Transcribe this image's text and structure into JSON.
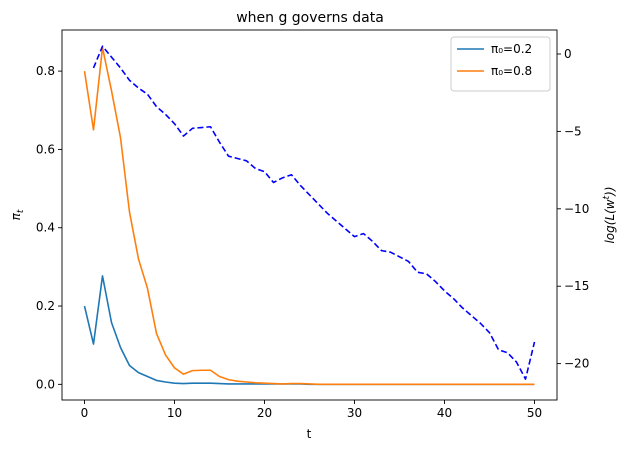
{
  "chart_data": {
    "type": "line",
    "title": "when g governs data",
    "xlabel": "t",
    "ylabel": "π_t",
    "y2label": "log(L(w^t))",
    "xlim": [
      -2.5,
      52.5
    ],
    "ylim": [
      -0.04,
      0.905
    ],
    "y2lim": [
      -22.35,
      1.55
    ],
    "xticks": [
      0,
      10,
      20,
      30,
      40,
      50
    ],
    "yticks": [
      0.0,
      0.2,
      0.4,
      0.6,
      0.8
    ],
    "y2ticks": [
      0,
      -5,
      -10,
      -15,
      -20
    ],
    "legend_position": "upper right",
    "series": [
      {
        "name": "π₀=0.2",
        "axis": "left",
        "color": "#1f77b4",
        "style": "solid",
        "x": [
          0,
          1,
          2,
          3,
          4,
          5,
          6,
          7,
          8,
          9,
          10,
          11,
          12,
          13,
          14,
          15,
          16,
          17,
          18,
          19,
          20,
          21,
          22,
          23,
          24,
          25,
          26,
          27,
          28,
          29,
          30,
          31,
          32,
          33,
          34,
          35,
          36,
          37,
          38,
          39,
          40,
          41,
          42,
          43,
          44,
          45,
          46,
          47,
          48,
          49,
          50
        ],
        "values": [
          0.2,
          0.103,
          0.277,
          0.158,
          0.094,
          0.048,
          0.03,
          0.02,
          0.01,
          0.006,
          0.003,
          0.002,
          0.003,
          0.003,
          0.003,
          0.002,
          0.001,
          0.001,
          0.001,
          0.001,
          0.001,
          0.001,
          0.001,
          0.001,
          0.001,
          0.0,
          0.0,
          0.0,
          0.0,
          0.0,
          0.0,
          0.0,
          0.0,
          0.0,
          0.0,
          0.0,
          0.0,
          0.0,
          0.0,
          0.0,
          0.0,
          0.0,
          0.0,
          0.0,
          0.0,
          0.0,
          0.0,
          0.0,
          0.0,
          0.0,
          0.0
        ]
      },
      {
        "name": "π₀=0.8",
        "axis": "left",
        "color": "#ff7f0e",
        "style": "solid",
        "x": [
          0,
          1,
          2,
          3,
          4,
          5,
          6,
          7,
          8,
          9,
          10,
          11,
          12,
          13,
          14,
          15,
          16,
          17,
          18,
          19,
          20,
          21,
          22,
          23,
          24,
          25,
          26,
          27,
          28,
          29,
          30,
          31,
          32,
          33,
          34,
          35,
          36,
          37,
          38,
          39,
          40,
          41,
          42,
          43,
          44,
          45,
          46,
          47,
          48,
          49,
          50
        ],
        "values": [
          0.8,
          0.65,
          0.86,
          0.75,
          0.63,
          0.44,
          0.32,
          0.245,
          0.13,
          0.075,
          0.042,
          0.026,
          0.035,
          0.036,
          0.036,
          0.02,
          0.012,
          0.008,
          0.006,
          0.004,
          0.003,
          0.002,
          0.001,
          0.002,
          0.002,
          0.001,
          0.0,
          0.0,
          0.0,
          0.0,
          0.0,
          0.0,
          0.0,
          0.0,
          0.0,
          0.0,
          0.0,
          0.0,
          0.0,
          0.0,
          0.0,
          0.0,
          0.0,
          0.0,
          0.0,
          0.0,
          0.0,
          0.0,
          0.0,
          0.0,
          0.0
        ]
      },
      {
        "name": "",
        "axis": "right",
        "color": "#0000ff",
        "style": "dashed",
        "x": [
          1,
          2,
          3,
          4,
          5,
          6,
          7,
          8,
          9,
          10,
          11,
          12,
          13,
          14,
          15,
          16,
          17,
          18,
          19,
          20,
          21,
          22,
          23,
          24,
          25,
          26,
          27,
          28,
          29,
          30,
          31,
          32,
          33,
          34,
          35,
          36,
          37,
          38,
          39,
          40,
          41,
          42,
          43,
          44,
          45,
          46,
          47,
          48,
          49,
          50
        ],
        "values": [
          -0.9,
          0.5,
          -0.2,
          -0.9,
          -1.7,
          -2.2,
          -2.6,
          -3.4,
          -3.9,
          -4.5,
          -5.3,
          -4.8,
          -4.75,
          -4.7,
          -5.7,
          -6.6,
          -6.75,
          -6.9,
          -7.4,
          -7.6,
          -8.3,
          -8.0,
          -7.8,
          -8.5,
          -9.1,
          -9.7,
          -10.3,
          -10.8,
          -11.3,
          -11.8,
          -11.6,
          -12.1,
          -12.7,
          -12.8,
          -13.1,
          -13.4,
          -14.1,
          -14.2,
          -14.7,
          -15.3,
          -15.8,
          -16.4,
          -16.9,
          -17.4,
          -18.0,
          -19.1,
          -19.3,
          -19.9,
          -21.0,
          -18.6
        ]
      }
    ]
  }
}
